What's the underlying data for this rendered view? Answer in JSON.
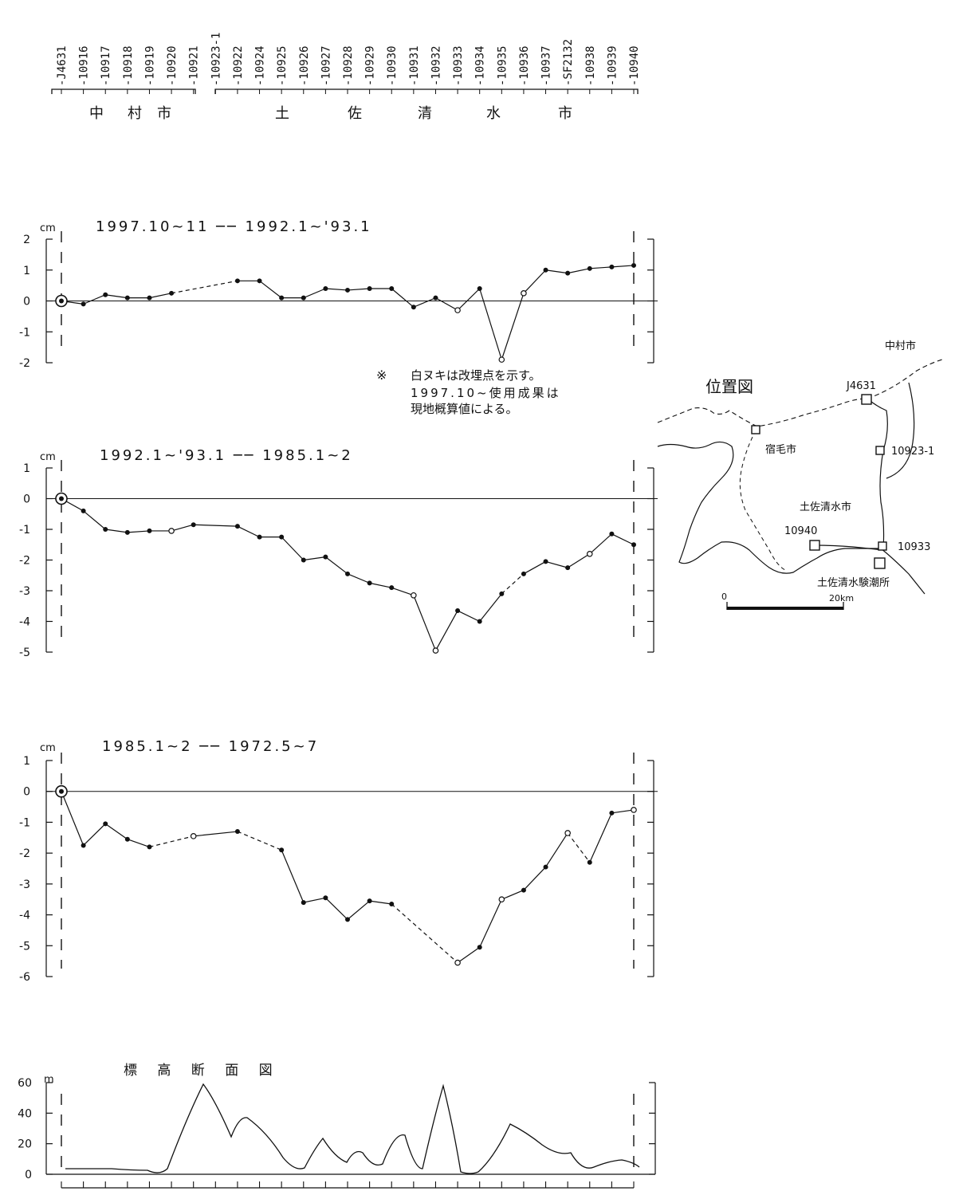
{
  "header": {
    "stations": [
      "J4631",
      "10916",
      "10917",
      "10918",
      "10919",
      "10920",
      "10921",
      "10923-1",
      "10922",
      "10924",
      "10925",
      "10926",
      "10927",
      "10928",
      "10929",
      "10930",
      "10931",
      "10932",
      "10933",
      "10934",
      "10935",
      "10936",
      "10937",
      "SF2132",
      "10938",
      "10939",
      "10940"
    ],
    "city_groups": [
      {
        "chars": [
          "中",
          "村",
          "市"
        ]
      },
      {
        "chars": [
          "土",
          "佐",
          "清",
          "水",
          "市"
        ]
      }
    ]
  },
  "note": {
    "mark": "※",
    "line1": "白ヌキは改埋点を示す。",
    "line2": "1997.10~使用成果は",
    "line3": "現地概算値による。"
  },
  "chart_data": [
    {
      "type": "line",
      "title": "1997.10~11 ── 1992.1~'93.1",
      "ylabel": "cm",
      "ylim": [
        -2,
        2
      ],
      "yticks": [
        "2",
        "1",
        "0",
        "-1",
        "-2"
      ],
      "points": [
        {
          "station": "J4631",
          "value": 0,
          "open": false,
          "reference": true
        },
        {
          "station": "10916",
          "value": -0.1,
          "open": false
        },
        {
          "station": "10917",
          "value": 0.2,
          "open": false
        },
        {
          "station": "10918",
          "value": 0.1,
          "open": false
        },
        {
          "station": "10919",
          "value": 0.1,
          "open": false
        },
        {
          "station": "10920",
          "value": 0.25,
          "open": false
        },
        {
          "station": "10922",
          "value": 0.65,
          "open": false
        },
        {
          "station": "10924",
          "value": 0.65,
          "open": false
        },
        {
          "station": "10925",
          "value": 0.1,
          "open": false
        },
        {
          "station": "10926",
          "value": 0.1,
          "open": false
        },
        {
          "station": "10927",
          "value": 0.4,
          "open": false
        },
        {
          "station": "10928",
          "value": 0.35,
          "open": false
        },
        {
          "station": "10929",
          "value": 0.4,
          "open": false
        },
        {
          "station": "10930",
          "value": 0.4,
          "open": false
        },
        {
          "station": "10931",
          "value": -0.2,
          "open": false
        },
        {
          "station": "10932",
          "value": 0.1,
          "open": false
        },
        {
          "station": "10933",
          "value": -0.3,
          "open": true
        },
        {
          "station": "10934",
          "value": 0.4,
          "open": false
        },
        {
          "station": "10935",
          "value": -1.9,
          "open": true
        },
        {
          "station": "10936",
          "value": 0.25,
          "open": true
        },
        {
          "station": "10937",
          "value": 1,
          "open": false
        },
        {
          "station": "SF2132",
          "value": 0.9,
          "open": false
        },
        {
          "station": "10938",
          "value": 1.05,
          "open": false
        },
        {
          "station": "10939",
          "value": 1.1,
          "open": false
        },
        {
          "station": "10940",
          "value": 1.15,
          "open": false
        }
      ],
      "dashed_segments": [
        [
          5,
          6
        ]
      ]
    },
    {
      "type": "line",
      "title": "1992.1~'93.1 ── 1985.1~2",
      "ylabel": "cm",
      "ylim": [
        -5,
        1
      ],
      "yticks": [
        "1",
        "0",
        "-1",
        "-2",
        "-3",
        "-4",
        "-5"
      ],
      "points": [
        {
          "station": "J4631",
          "value": 0,
          "open": false,
          "reference": true
        },
        {
          "station": "10916",
          "value": -0.4,
          "open": false
        },
        {
          "station": "10917",
          "value": -1,
          "open": false
        },
        {
          "station": "10918",
          "value": -1.1,
          "open": false
        },
        {
          "station": "10919",
          "value": -1.05,
          "open": false
        },
        {
          "station": "10920",
          "value": -1.05,
          "open": true
        },
        {
          "station": "10921",
          "value": -0.85,
          "open": false
        },
        {
          "station": "10922",
          "value": -0.9,
          "open": false
        },
        {
          "station": "10924",
          "value": -1.25,
          "open": false
        },
        {
          "station": "10925",
          "value": -1.25,
          "open": false
        },
        {
          "station": "10926",
          "value": -2,
          "open": false
        },
        {
          "station": "10927",
          "value": -1.9,
          "open": false
        },
        {
          "station": "10928",
          "value": -2.45,
          "open": false
        },
        {
          "station": "10929",
          "value": -2.75,
          "open": false
        },
        {
          "station": "10930",
          "value": -2.9,
          "open": false
        },
        {
          "station": "10931",
          "value": -3.15,
          "open": true
        },
        {
          "station": "10932",
          "value": -4.95,
          "open": true
        },
        {
          "station": "10933",
          "value": -3.65,
          "open": false
        },
        {
          "station": "10934",
          "value": -4,
          "open": false
        },
        {
          "station": "10935",
          "value": -3.1,
          "open": false
        },
        {
          "station": "10936",
          "value": -2.45,
          "open": false
        },
        {
          "station": "10937",
          "value": -2.05,
          "open": false
        },
        {
          "station": "SF2132",
          "value": -2.25,
          "open": false
        },
        {
          "station": "10938",
          "value": -1.8,
          "open": true
        },
        {
          "station": "10939",
          "value": -1.15,
          "open": false
        },
        {
          "station": "10940",
          "value": -1.5,
          "open": false
        }
      ],
      "dashed_segments": [
        [
          19,
          20
        ]
      ]
    },
    {
      "type": "line",
      "title": "1985.1~2 ── 1972.5~7",
      "ylabel": "cm",
      "ylim": [
        -6,
        1
      ],
      "yticks": [
        "1",
        "0",
        "-1",
        "-2",
        "-3",
        "-4",
        "-5",
        "-6"
      ],
      "points": [
        {
          "station": "J4631",
          "value": 0,
          "open": false,
          "reference": true
        },
        {
          "station": "10916",
          "value": -1.75,
          "open": false
        },
        {
          "station": "10917",
          "value": -1.05,
          "open": false
        },
        {
          "station": "10918",
          "value": -1.55,
          "open": false
        },
        {
          "station": "10919",
          "value": -1.8,
          "open": false
        },
        {
          "station": "10921",
          "value": -1.45,
          "open": true
        },
        {
          "station": "10922",
          "value": -1.3,
          "open": false
        },
        {
          "station": "10925",
          "value": -1.9,
          "open": false
        },
        {
          "station": "10926",
          "value": -3.6,
          "open": false
        },
        {
          "station": "10927",
          "value": -3.45,
          "open": false
        },
        {
          "station": "10928",
          "value": -4.15,
          "open": false
        },
        {
          "station": "10929",
          "value": -3.55,
          "open": false
        },
        {
          "station": "10930",
          "value": -3.65,
          "open": false
        },
        {
          "station": "10933",
          "value": -5.55,
          "open": true
        },
        {
          "station": "10934",
          "value": -5.05,
          "open": false
        },
        {
          "station": "10935",
          "value": -3.5,
          "open": true
        },
        {
          "station": "10936",
          "value": -3.2,
          "open": false
        },
        {
          "station": "10937",
          "value": -2.45,
          "open": false
        },
        {
          "station": "SF2132",
          "value": -1.35,
          "open": true
        },
        {
          "station": "10938",
          "value": -2.3,
          "open": false
        },
        {
          "station": "10939",
          "value": -0.7,
          "open": false
        },
        {
          "station": "10940",
          "value": -0.6,
          "open": true
        }
      ],
      "dashed_segments": [
        [
          4,
          5
        ],
        [
          6,
          7
        ],
        [
          12,
          13
        ],
        [
          18,
          19
        ]
      ]
    }
  ],
  "elevation": {
    "title": "標 高 断 面 図",
    "ylabel": "m",
    "ylim": [
      0,
      60
    ],
    "yticks": [
      "60",
      "40",
      "20",
      "0"
    ]
  },
  "map": {
    "title": "位置図",
    "labels": {
      "nakamura": "中村市",
      "sukumo": "宿毛市",
      "tosashimizu": "土佐清水市",
      "tide": "土佐清水験潮所",
      "j4631": "J4631",
      "s10923": "10923-1",
      "s10940": "10940",
      "s10933": "10933",
      "scale0": "0",
      "scale20": "20km"
    }
  }
}
